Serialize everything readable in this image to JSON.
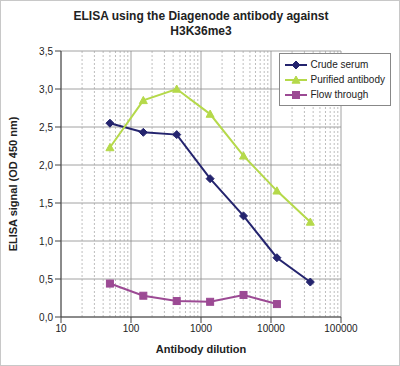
{
  "chart_data": {
    "type": "line",
    "title": "ELISA using the Diagenode antibody against H3K36me3",
    "x_label": "Antibody dilution",
    "y_label": "ELISA signal (OD 450 nm)",
    "x": [
      50,
      150,
      450,
      1350,
      4050,
      12150,
      36450
    ],
    "series": [
      {
        "name": "Crude serum",
        "color": "#24246e",
        "marker": "diamond",
        "values": [
          2.55,
          2.43,
          2.4,
          1.82,
          1.33,
          0.78,
          0.46
        ]
      },
      {
        "name": "Purified antibody",
        "color": "#b5d94a",
        "marker": "triangle",
        "values": [
          2.23,
          2.85,
          3.0,
          2.67,
          2.12,
          1.66,
          1.25
        ]
      },
      {
        "name": "Flow through",
        "color": "#9c4a94",
        "marker": "square",
        "values": [
          0.44,
          0.28,
          0.21,
          0.2,
          0.29,
          0.17,
          null
        ]
      }
    ],
    "log": "x",
    "xlim": [
      10,
      100000
    ],
    "xticks": [
      10,
      100,
      1000,
      10000,
      100000
    ],
    "ylim": [
      0,
      3.5
    ],
    "yticks": [
      {
        "value": 0,
        "label": "0,0"
      },
      {
        "value": 0.5,
        "label": "0,5"
      },
      {
        "value": 1,
        "label": "1,0"
      },
      {
        "value": 1.5,
        "label": "1,5"
      },
      {
        "value": 2,
        "label": "2,0"
      },
      {
        "value": 2.5,
        "label": "2,5"
      },
      {
        "value": 3,
        "label": "3,0"
      },
      {
        "value": 3.5,
        "label": "3,5"
      }
    ],
    "grid": true,
    "legend": "top-right"
  }
}
